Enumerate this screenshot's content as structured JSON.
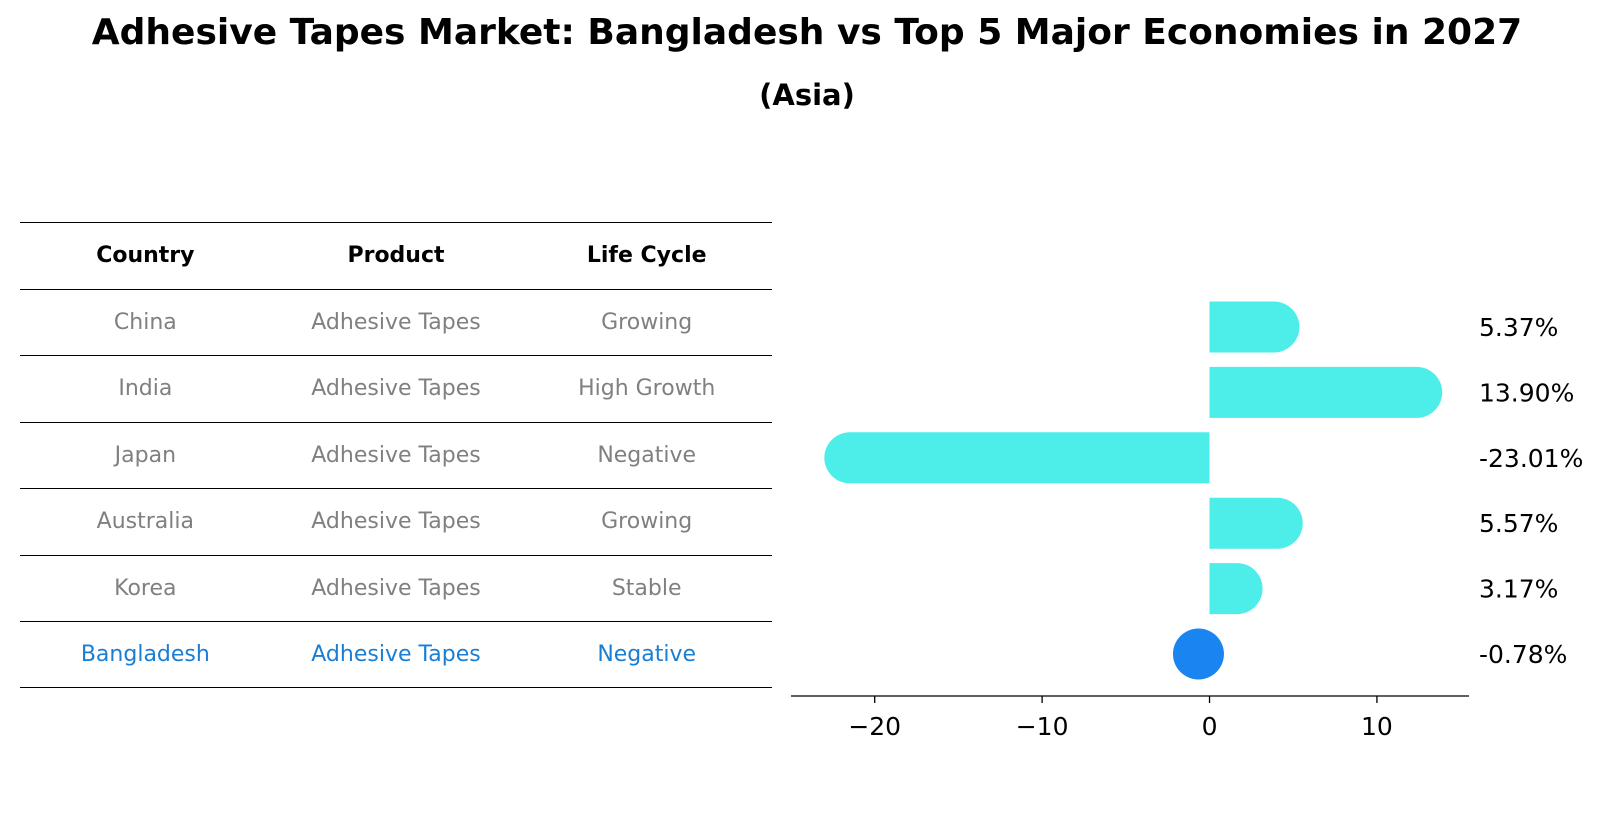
{
  "title": "Adhesive Tapes Market: Bangladesh vs Top 5 Major Economies in 2027",
  "subtitle": "(Asia)",
  "table": {
    "headers": [
      "Country",
      "Product",
      "Life Cycle"
    ],
    "rows": [
      {
        "country": "China",
        "product": "Adhesive Tapes",
        "life_cycle": "Growing"
      },
      {
        "country": "India",
        "product": "Adhesive Tapes",
        "life_cycle": "High Growth"
      },
      {
        "country": "Japan",
        "product": "Adhesive Tapes",
        "life_cycle": "Negative"
      },
      {
        "country": "Australia",
        "product": "Adhesive Tapes",
        "life_cycle": "Growing"
      },
      {
        "country": "Korea",
        "product": "Adhesive Tapes",
        "life_cycle": "Stable"
      },
      {
        "country": "Bangladesh",
        "product": "Adhesive Tapes",
        "life_cycle": "Negative"
      }
    ],
    "highlight_country": "Bangladesh"
  },
  "chart_data": {
    "type": "bar",
    "orientation": "horizontal",
    "categories": [
      "China",
      "India",
      "Japan",
      "Australia",
      "Korea",
      "Bangladesh"
    ],
    "values": [
      5.37,
      13.9,
      -23.01,
      5.57,
      3.17,
      -0.78
    ],
    "value_labels": [
      "5.37%",
      "13.90%",
      "-23.01%",
      "5.57%",
      "3.17%",
      "-0.78%"
    ],
    "xlim": [
      -25,
      15.5
    ],
    "xticks": [
      -20,
      -10,
      0,
      10
    ],
    "xtick_labels": [
      "−20",
      "−10",
      "0",
      "10"
    ],
    "bar_color": "#4deeea",
    "highlight_color": "#1a85f0",
    "highlight_category": "Bangladesh"
  }
}
